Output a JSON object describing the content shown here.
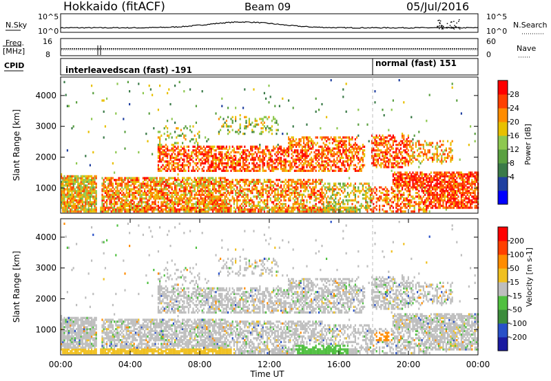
{
  "header": {
    "station": "Hokkaido (fitACF)",
    "beam": "Beam 09",
    "date": "05/Jul/2016"
  },
  "noise_panel": {
    "left_label": "N.Sky",
    "right_label": "N.Search",
    "y_ticks_left": [
      "10^5",
      "10^0"
    ],
    "y_ticks_right": [
      "10^5",
      "10^0"
    ]
  },
  "freq_panel": {
    "left_label_1": "Freq.",
    "left_label_2": "[MHz]",
    "right_label": "Nave",
    "y_ticks_left": [
      "16",
      "8"
    ],
    "y_ticks_right": [
      "60",
      "0"
    ]
  },
  "cpid_panel": {
    "label": "CPID",
    "mode_1": "interleavedscan (fast) -191",
    "mode_2": "normal (fast) 151"
  },
  "time_axis": {
    "label": "Time UT",
    "ticks": [
      "00:00",
      "04:00",
      "08:00",
      "12:00",
      "16:00",
      "20:00",
      "00:00"
    ]
  },
  "chart_data": [
    {
      "type": "heatmap",
      "name": "power",
      "ylabel": "Slant Range [km]",
      "y_ticks": [
        "4000",
        "3000",
        "2000",
        "1000"
      ],
      "ylim": [
        180,
        4600
      ],
      "xlim_hours": [
        0,
        24
      ],
      "colorbar_label": "Power [dB]",
      "colorbar_ticks": [
        "28",
        "24",
        "20",
        "16",
        "12",
        "8",
        "4"
      ],
      "colors": [
        "#0000ff",
        "#2040a0",
        "#3a7a48",
        "#5aa040",
        "#8ec850",
        "#e8c000",
        "#ff8c00",
        "#ff4000",
        "#ff0000"
      ]
    },
    {
      "type": "heatmap",
      "name": "velocity",
      "ylabel": "Slant Range [km]",
      "y_ticks": [
        "4000",
        "3000",
        "2000",
        "1000"
      ],
      "ylim": [
        180,
        4600
      ],
      "xlim_hours": [
        0,
        24
      ],
      "colorbar_label": "Velocity [m s-1]",
      "colorbar_ticks": [
        "200",
        "100",
        "50",
        "15",
        "-15",
        "-50",
        "-100",
        "-200"
      ],
      "colors": [
        "#1a1aa0",
        "#2850c8",
        "#3c8c3c",
        "#50c040",
        "#bebebe",
        "#f0c020",
        "#ff8c00",
        "#ff4000",
        "#ff0000"
      ]
    }
  ]
}
